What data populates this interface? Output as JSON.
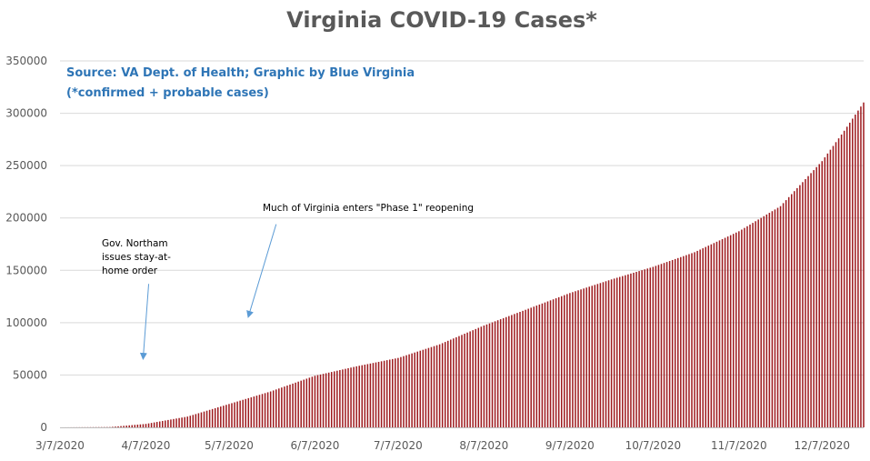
{
  "chart_data": {
    "type": "bar",
    "title": "Virginia COVID-19 Cases*",
    "source_line1": "Source: VA Dept. of Health; Graphic by Blue Virginia",
    "source_line2": "(*confirmed + probable cases)",
    "xlabel": "",
    "ylabel": "",
    "ylim": [
      0,
      350000
    ],
    "yticks": [
      0,
      50000,
      100000,
      150000,
      200000,
      250000,
      300000,
      350000
    ],
    "ytick_labels": [
      "0",
      "50000",
      "100000",
      "150000",
      "200000",
      "250000",
      "300000",
      "350000"
    ],
    "x_start_date": "3/7/2020",
    "x_end_date": "12/22/2020",
    "xtick_labels": [
      "3/7/2020",
      "4/7/2020",
      "5/7/2020",
      "6/7/2020",
      "7/7/2020",
      "8/7/2020",
      "9/7/2020",
      "10/7/2020",
      "11/7/2020",
      "12/7/2020"
    ],
    "xtick_dates": [
      "2020-03-07",
      "2020-04-07",
      "2020-05-07",
      "2020-06-07",
      "2020-07-07",
      "2020-08-07",
      "2020-09-07",
      "2020-10-07",
      "2020-11-07",
      "2020-12-07"
    ],
    "grid": true,
    "bar_color": "#9e1b1f",
    "series": [
      {
        "dates": [
          "2020-03-07",
          "2020-03-25",
          "2020-04-07",
          "2020-04-22",
          "2020-05-07",
          "2020-05-22",
          "2020-06-07",
          "2020-06-22",
          "2020-07-07",
          "2020-07-22",
          "2020-08-07",
          "2020-08-22",
          "2020-09-07",
          "2020-09-22",
          "2020-10-07",
          "2020-10-22",
          "2020-11-07",
          "2020-11-22",
          "2020-12-07",
          "2020-12-15",
          "2020-12-22"
        ],
        "values": [
          0,
          300,
          3300,
          10300,
          22300,
          34300,
          49300,
          58300,
          66300,
          79300,
          97300,
          112300,
          128300,
          141300,
          153300,
          167300,
          187300,
          211300,
          254300,
          283300,
          310300
        ]
      }
    ],
    "annotations": [
      {
        "lines": [
          "Gov. Northam",
          "issues stay-at-",
          "home order"
        ],
        "arrow_from_date": "2020-04-08",
        "arrow_from_value": 137000,
        "arrow_to_date": "2020-04-06",
        "arrow_to_value": 66000
      },
      {
        "lines": [
          "Much of Virginia enters \"Phase 1\" reopening"
        ],
        "arrow_from_date": "2020-05-24",
        "arrow_from_value": 194000,
        "arrow_to_date": "2020-05-14",
        "arrow_to_value": 106000
      }
    ],
    "annotation_arrow_color": "#5b9bd5"
  }
}
